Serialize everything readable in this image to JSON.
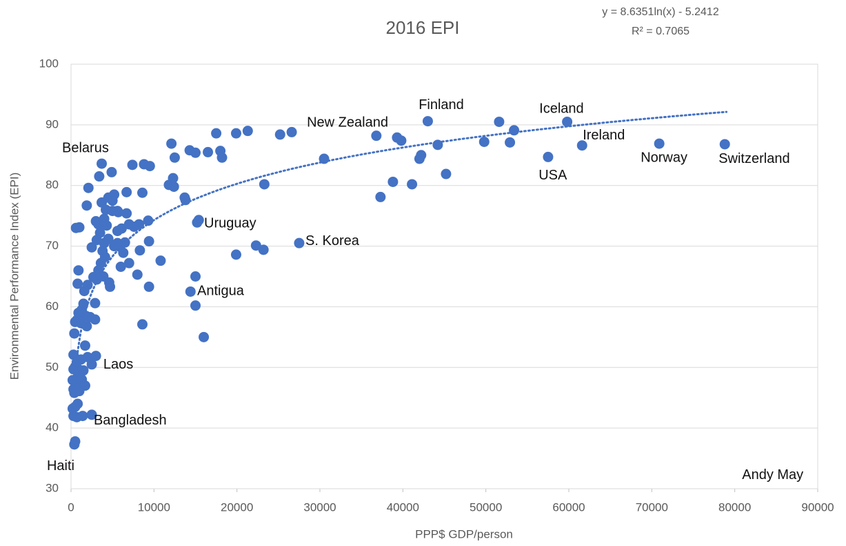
{
  "chart_data": {
    "type": "scatter",
    "title": "2016 EPI",
    "x_label": "PPP$ GDP/person",
    "y_label": "Environmental Performance Index (EPI)",
    "color": "#4472c4",
    "grid": true,
    "xlim": [
      0,
      90000
    ],
    "ylim": [
      30,
      100
    ],
    "xticks": [
      0,
      10000,
      20000,
      30000,
      40000,
      50000,
      60000,
      70000,
      80000,
      90000
    ],
    "yticks": [
      30,
      40,
      50,
      60,
      70,
      80,
      90,
      100
    ],
    "trendline": {
      "label": "y = 8.6351ln(x) - 5.2412",
      "r2_label": "R² = 0.7065",
      "a": 8.6351,
      "b": -5.2412,
      "x_range": [
        500,
        79000
      ]
    },
    "x": [
      43000,
      51600,
      59800,
      53400,
      49800,
      52900,
      61600,
      70900,
      78800,
      57500,
      36800,
      39300,
      39800,
      44200,
      42000,
      42200,
      45200,
      38800,
      41100,
      37300,
      30500,
      27500,
      25200,
      26600,
      21300,
      19900,
      17500,
      23300,
      22300,
      23200,
      19900,
      18000,
      18200,
      16500,
      15000,
      14300,
      12100,
      12500,
      12300,
      11800,
      12400,
      13700,
      13800,
      15400,
      15200,
      15000,
      14400,
      15000,
      16000,
      10800,
      9400,
      9400,
      8600,
      9500,
      8800,
      7400,
      8600,
      9300,
      8200,
      7600,
      6700,
      6700,
      5200,
      5000,
      4900,
      3700,
      3400,
      2100,
      1900,
      3700,
      4200,
      5700,
      6100,
      6500,
      5900,
      7000,
      8300,
      8000,
      6000,
      3000,
      3300,
      4000,
      4300,
      3500,
      3100,
      4000,
      4500,
      5200,
      3800,
      4100,
      3600,
      3300,
      3900,
      4600,
      4700,
      3100,
      2700,
      2000,
      1600,
      800,
      900,
      600,
      1000,
      2500,
      2900,
      2900,
      1500,
      1300,
      1800,
      2300,
      900,
      700,
      500,
      1200,
      1900,
      400,
      1700,
      300,
      2000,
      1200,
      700,
      500,
      300,
      1000,
      1500,
      800,
      1300,
      200,
      600,
      1700,
      300,
      1000,
      400,
      2500,
      3000,
      800,
      500,
      200,
      300,
      700,
      1400,
      2500,
      500,
      400,
      5000,
      5600,
      5600,
      6300,
      5600,
      7000,
      4500
    ],
    "values": [
      90.6,
      90.5,
      90.5,
      89.1,
      87.2,
      87.1,
      86.6,
      86.9,
      86.8,
      84.7,
      88.2,
      87.9,
      87.4,
      86.7,
      84.4,
      85.0,
      81.9,
      80.6,
      80.2,
      78.1,
      84.4,
      70.5,
      88.4,
      88.8,
      89.0,
      88.6,
      88.6,
      80.2,
      70.1,
      69.4,
      68.6,
      85.7,
      84.6,
      85.5,
      85.4,
      85.8,
      86.9,
      84.6,
      81.2,
      80.1,
      79.8,
      78.0,
      77.6,
      74.3,
      73.9,
      65.0,
      62.5,
      60.2,
      55.0,
      67.6,
      70.8,
      63.3,
      57.1,
      83.2,
      83.5,
      83.4,
      78.8,
      74.2,
      73.6,
      73.2,
      78.9,
      75.4,
      78.5,
      77.5,
      82.2,
      83.6,
      81.5,
      79.6,
      76.7,
      77.2,
      76.0,
      75.6,
      72.9,
      70.6,
      69.9,
      67.2,
      69.3,
      65.3,
      66.6,
      74.1,
      73.6,
      74.5,
      73.4,
      72.2,
      71.0,
      70.5,
      71.2,
      70.0,
      69.2,
      68.2,
      67.2,
      66.0,
      65.0,
      64.0,
      63.3,
      64.5,
      64.9,
      63.6,
      62.6,
      63.8,
      66.0,
      73.0,
      73.1,
      69.8,
      60.6,
      57.9,
      60.5,
      59.5,
      58.5,
      58.3,
      59.0,
      57.8,
      57.5,
      57.3,
      56.8,
      55.6,
      53.6,
      52.1,
      51.7,
      51.3,
      50.9,
      50.1,
      49.7,
      49.6,
      49.5,
      48.4,
      48.0,
      47.9,
      47.1,
      47.0,
      46.4,
      46.1,
      45.8,
      50.5,
      51.9,
      44.0,
      43.5,
      43.2,
      42.0,
      41.8,
      42.0,
      42.2,
      37.8,
      37.3,
      75.8,
      75.8,
      72.5,
      68.9,
      70.5,
      73.6,
      78.0
    ],
    "annotations": [
      {
        "text": "Belarus",
        "x": -1080,
        "y": 86.1
      },
      {
        "text": "New Zealand",
        "x": 28430,
        "y": 90.3
      },
      {
        "text": "Finland",
        "x": 41900,
        "y": 93.2
      },
      {
        "text": "Iceland",
        "x": 56440,
        "y": 92.6
      },
      {
        "text": "Ireland",
        "x": 61680,
        "y": 88.2
      },
      {
        "text": "Norway",
        "x": 68660,
        "y": 84.5
      },
      {
        "text": "Switzerland",
        "x": 78050,
        "y": 84.3
      },
      {
        "text": "USA",
        "x": 56360,
        "y": 81.6
      },
      {
        "text": "Uruguay",
        "x": 16040,
        "y": 73.7
      },
      {
        "text": "S. Korea",
        "x": 28260,
        "y": 70.8
      },
      {
        "text": "Antigua",
        "x": 15210,
        "y": 62.5
      },
      {
        "text": "Laos",
        "x": 3900,
        "y": 50.4
      },
      {
        "text": "Bangladesh",
        "x": 2740,
        "y": 41.2
      },
      {
        "text": "Haiti",
        "x": -2910,
        "y": 33.7
      },
      {
        "text": "Andy May",
        "x": 80880,
        "y": 32.2
      }
    ]
  }
}
